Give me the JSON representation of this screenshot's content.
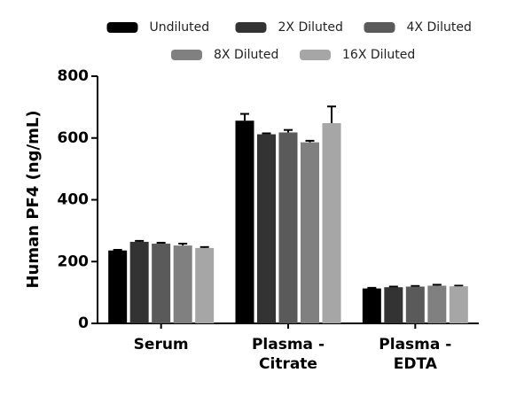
{
  "chart_data": {
    "type": "bar",
    "y_label": "Human PF4 (ng/mL)",
    "categories": [
      [
        "Serum"
      ],
      [
        "Plasma -",
        "Citrate"
      ],
      [
        "Plasma -",
        "EDTA"
      ]
    ],
    "series": [
      {
        "name": "Undiluted",
        "color": "#000000",
        "values": [
          236,
          656,
          113
        ],
        "errors": [
          2,
          22,
          2
        ]
      },
      {
        "name": "2X Diluted",
        "color": "#333333",
        "values": [
          264,
          612,
          117
        ],
        "errors": [
          3,
          3,
          2
        ]
      },
      {
        "name": "4X Diluted",
        "color": "#5a5a5a",
        "values": [
          258,
          618,
          119
        ],
        "errors": [
          3,
          8,
          2
        ]
      },
      {
        "name": "8X Diluted",
        "color": "#808080",
        "values": [
          252,
          586,
          122
        ],
        "errors": [
          6,
          5,
          3
        ]
      },
      {
        "name": "16X Diluted",
        "color": "#a6a6a6",
        "values": [
          244,
          648,
          120
        ],
        "errors": [
          3,
          54,
          2
        ]
      }
    ],
    "ylim": [
      0,
      800
    ],
    "yticks": [
      0,
      200,
      400,
      600,
      800
    ]
  }
}
